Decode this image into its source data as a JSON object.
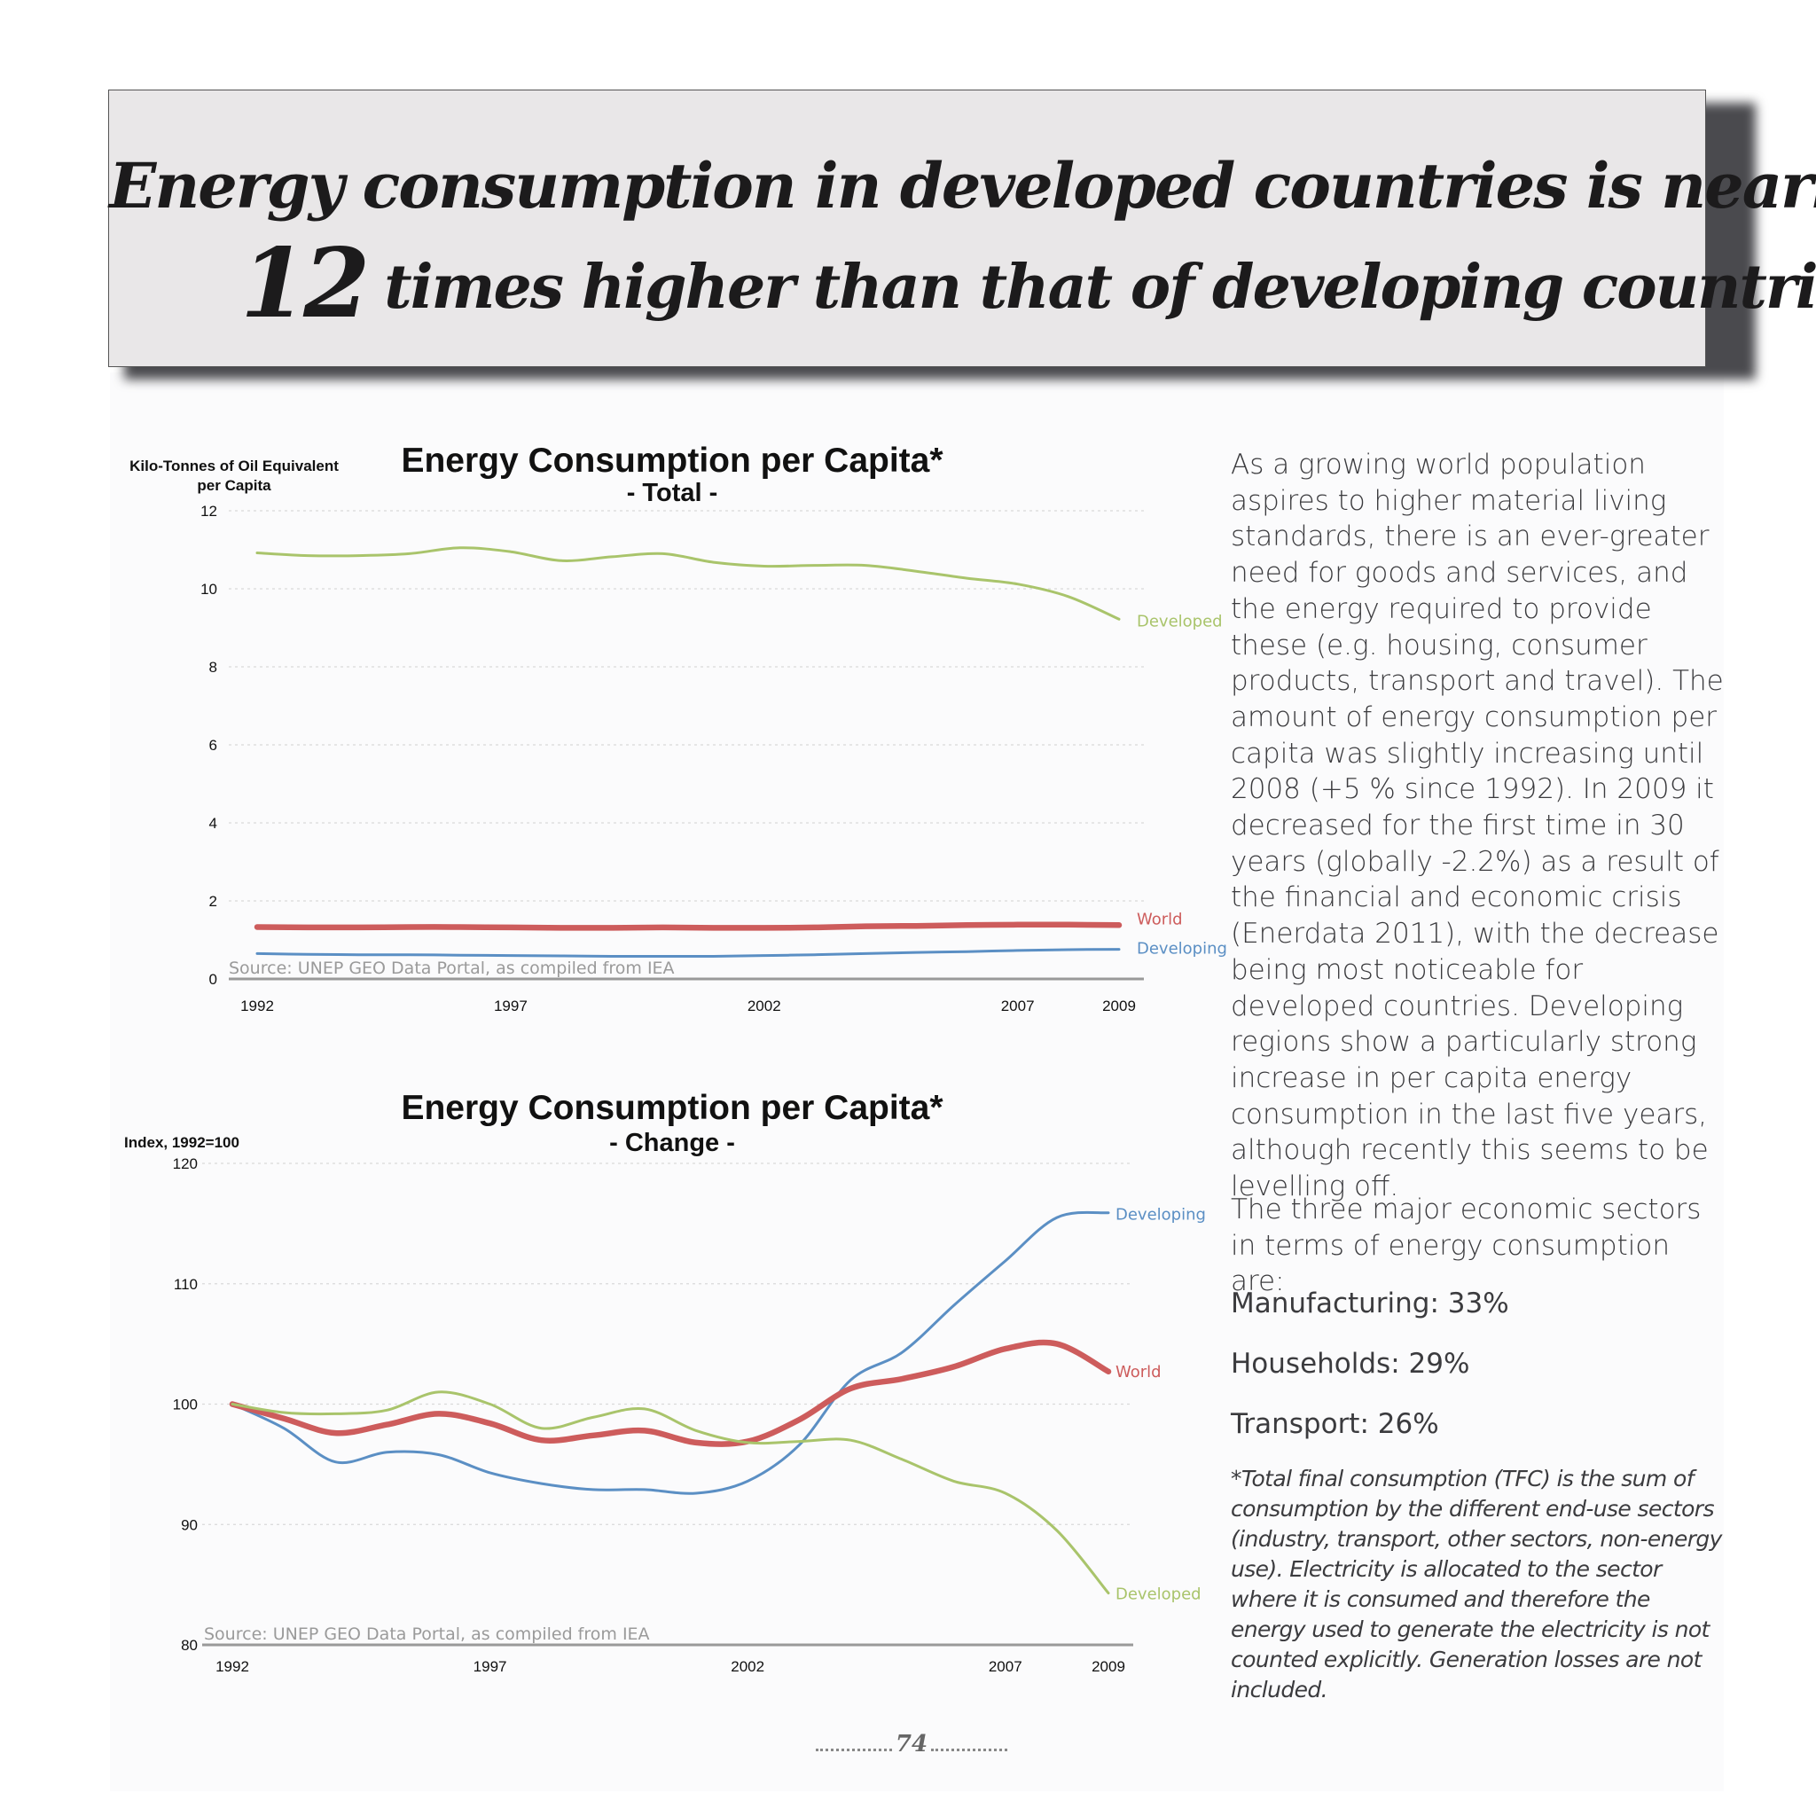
{
  "headline": {
    "line1": "Energy consumption in developed countries is nearly",
    "number": "12",
    "line2": "times higher than that of developing countries"
  },
  "colors": {
    "developed": "#a9c46b",
    "world": "#cd5c5c",
    "developing": "#5b8fc4"
  },
  "chart_data": [
    {
      "type": "line",
      "title": "Energy Consumption per Capita*",
      "subtitle": "- Total -",
      "ylabel": "Kilo-Tonnes of Oil Equivalent per Capita",
      "ylim": [
        0,
        12
      ],
      "yticks": [
        "0",
        "2",
        "4",
        "6",
        "8",
        "10",
        "12"
      ],
      "x_ticks": [
        "1992",
        "1997",
        "2002",
        "2007",
        "2009"
      ],
      "x": [
        1992,
        1993,
        1994,
        1995,
        1996,
        1997,
        1998,
        1999,
        2000,
        2001,
        2002,
        2003,
        2004,
        2005,
        2006,
        2007,
        2008,
        2009
      ],
      "series": [
        {
          "name": "Developed",
          "values": [
            10.92,
            10.85,
            10.85,
            10.9,
            11.05,
            10.95,
            10.72,
            10.82,
            10.9,
            10.68,
            10.58,
            10.6,
            10.6,
            10.45,
            10.27,
            10.12,
            9.8,
            9.22
          ]
        },
        {
          "name": "World",
          "values": [
            1.33,
            1.32,
            1.32,
            1.33,
            1.33,
            1.32,
            1.31,
            1.31,
            1.32,
            1.31,
            1.31,
            1.32,
            1.35,
            1.36,
            1.38,
            1.39,
            1.39,
            1.38
          ]
        },
        {
          "name": "Developing",
          "values": [
            0.65,
            0.63,
            0.62,
            0.62,
            0.61,
            0.6,
            0.59,
            0.58,
            0.58,
            0.58,
            0.6,
            0.62,
            0.65,
            0.68,
            0.7,
            0.73,
            0.75,
            0.76
          ]
        }
      ],
      "source": "Source: UNEP GEO Data Portal, as compiled from IEA",
      "grid": true,
      "legend": "line-end labels"
    },
    {
      "type": "line",
      "title": "Energy Consumption per Capita*",
      "subtitle": "- Change -",
      "ylabel": "Index, 1992=100",
      "ylim": [
        80,
        120
      ],
      "yticks": [
        "80",
        "90",
        "100",
        "110",
        "120"
      ],
      "x_ticks": [
        "1992",
        "1997",
        "2002",
        "2007",
        "2009"
      ],
      "x": [
        1992,
        1993,
        1994,
        1995,
        1996,
        1997,
        1998,
        1999,
        2000,
        2001,
        2002,
        2003,
        2004,
        2005,
        2006,
        2007,
        2008,
        2009
      ],
      "series": [
        {
          "name": "Developing",
          "values": [
            100,
            98,
            95.2,
            96,
            95.8,
            94.3,
            93.4,
            92.9,
            92.9,
            92.6,
            93.6,
            96.6,
            102,
            104.3,
            108.2,
            111.9,
            115.5,
            115.9
          ]
        },
        {
          "name": "World",
          "values": [
            100,
            98.8,
            97.6,
            98.3,
            99.2,
            98.4,
            97,
            97.4,
            97.8,
            96.8,
            96.9,
            98.7,
            101.3,
            102.1,
            103.1,
            104.6,
            105,
            102.7
          ]
        },
        {
          "name": "Developed",
          "values": [
            100,
            99.3,
            99.2,
            99.5,
            101,
            100,
            98,
            98.9,
            99.6,
            97.8,
            96.8,
            96.9,
            97,
            95.4,
            93.6,
            92.6,
            89.5,
            84.3
          ]
        }
      ],
      "source": "Source: UNEP GEO Data Portal, as compiled from IEA",
      "grid": true,
      "legend": "line-end labels"
    }
  ],
  "text": {
    "para1": "As a growing world population aspires to higher material living standards, there is an ever-greater need for goods and services, and the energy required to provide these (e.g. housing, consumer products, transport and travel). The amount of energy consumption per capita was slightly increasing until 2008 (+5 % since 1992). In 2009 it decreased for the first time in 30 years (globally -2.2%) as a result of the financial and economic crisis (Enerdata 2011), with the decrease being most noticeable for developed countries. Developing regions show a particularly strong increase in per capita energy consumption in the last five years, although recently this seems to be levelling off.",
    "para2": "The three major economic sectors in terms of energy consumption are:",
    "stat1": "Manufacturing: 33%",
    "stat2": "Households: 29%",
    "stat3": "Transport: 26%",
    "note": "*Total final consumption (TFC) is the sum of consumption by the different end-use sectors (industry, transport, other sectors, non-energy use). Electricity is allocated to the sector where it is consumed and therefore the energy used to generate the electricity is not counted explicitly. Generation losses are not included."
  },
  "page_number": "74"
}
